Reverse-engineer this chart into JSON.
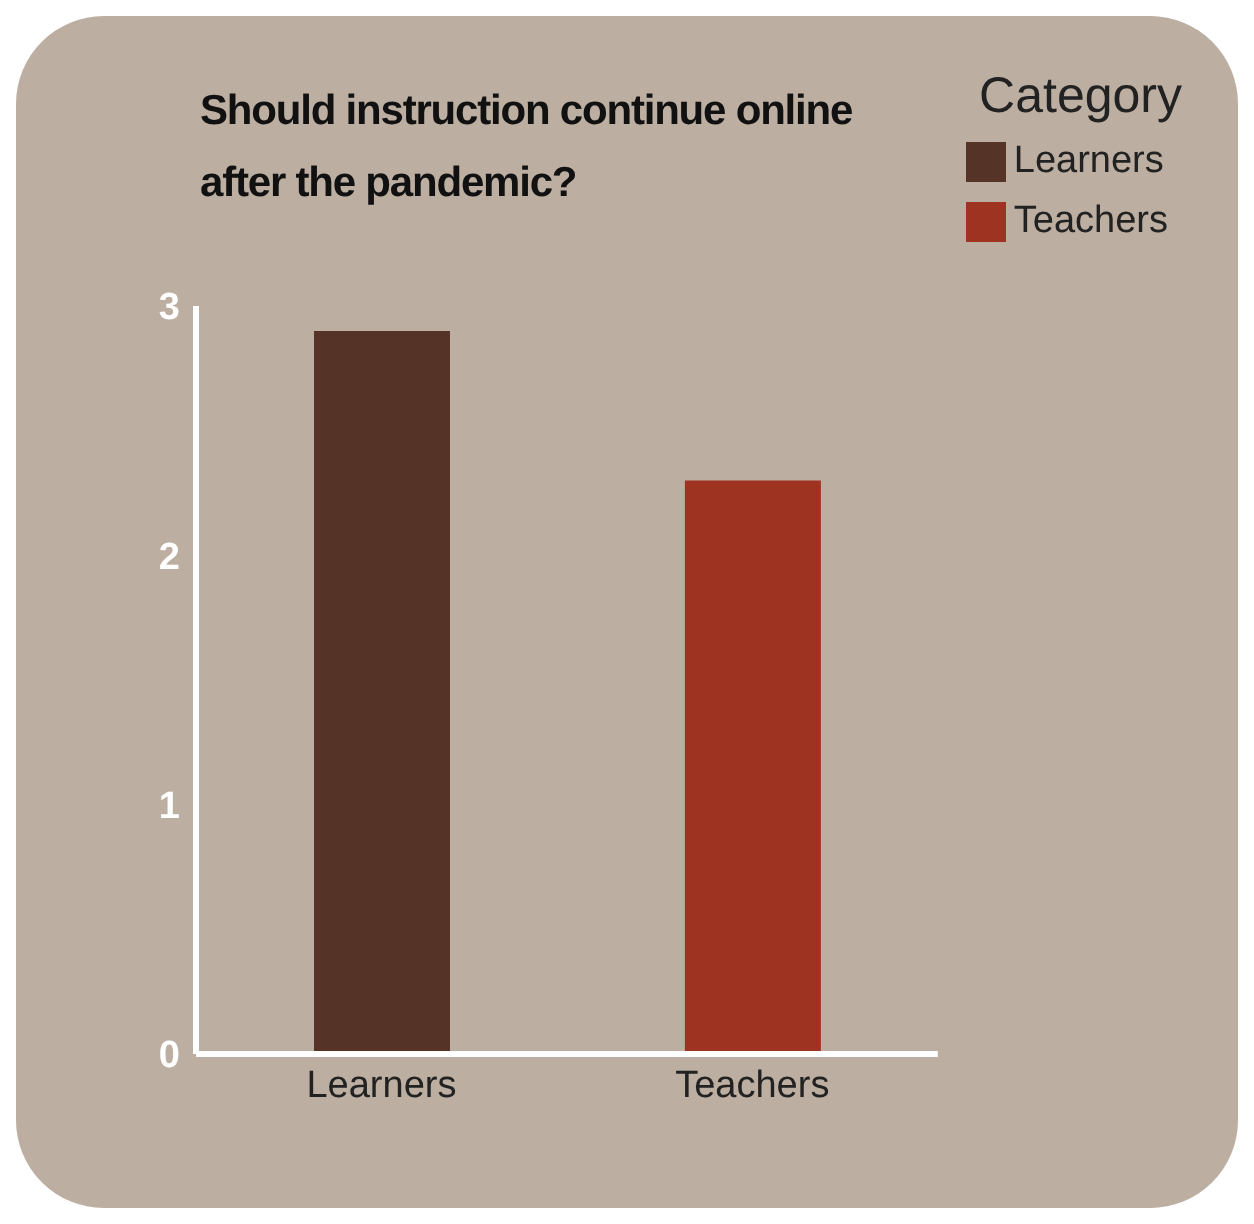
{
  "chart_data": {
    "type": "bar",
    "title": "Should instruction continue online after the pandemic?",
    "legend_title": "Category",
    "categories": [
      "Learners",
      "Teachers"
    ],
    "stacked": true,
    "series": [
      {
        "name": "Learners",
        "color": "#553427",
        "values": [
          2.9,
          null
        ]
      },
      {
        "name": "Teachers",
        "color": "#9e3322",
        "values": [
          null,
          2.3
        ]
      }
    ],
    "ylim": [
      0,
      3
    ],
    "yticks": [
      0,
      1,
      2,
      3
    ],
    "legend": "top right"
  }
}
